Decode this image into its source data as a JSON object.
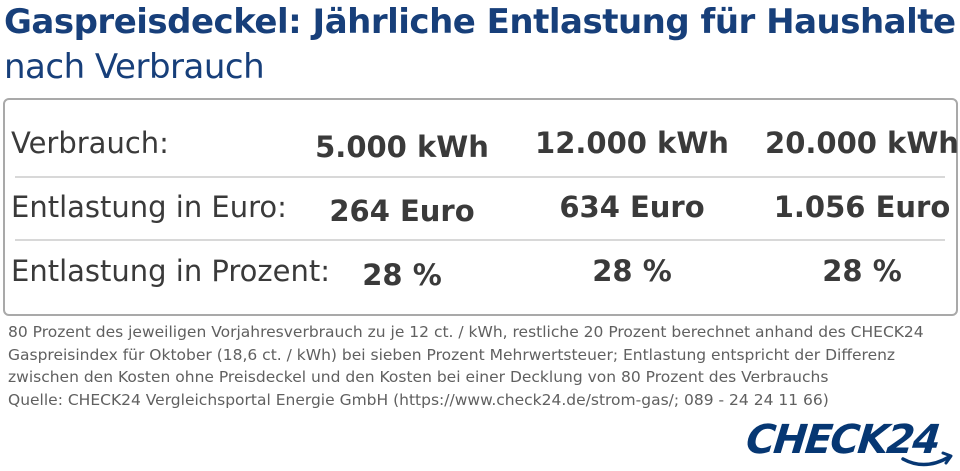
{
  "header": {
    "title": "Gaspreisdeckel: Jährliche Entlastung für Haushalte",
    "subtitle": "nach Verbrauch"
  },
  "table": {
    "rows": [
      {
        "label": "Verbrauch:",
        "values": [
          "5.000 kWh",
          "12.000 kWh",
          "20.000 kWh"
        ]
      },
      {
        "label": "Entlastung in Euro:",
        "values": [
          "264 Euro",
          "634 Euro",
          "1.056 Euro"
        ]
      },
      {
        "label": "Entlastung in Prozent:",
        "values": [
          "28 %",
          "28 %",
          "28 %"
        ]
      }
    ]
  },
  "footnote": {
    "lines": [
      "80 Prozent des jeweiligen Vorjahresverbrauch zu je 12 ct. / kWh, restliche 20 Prozent berechnet anhand des CHECK24",
      "Gaspreisindex für Oktober (18,6 ct. / kWh) bei sieben Prozent Mehrwertsteuer; Entlastung entspricht der Differenz",
      "zwischen den Kosten ohne Preisdeckel und den Kosten bei einer Decklung von 80 Prozent des Verbrauchs",
      "Quelle: CHECK24 Vergleichsportal Energie GmbH (https://www.check24.de/strom-gas/; 089 - 24 24 11 66)"
    ]
  },
  "logo": {
    "text": "CHECK24",
    "color": "#063773",
    "icon": "check24-logo-swoosh"
  },
  "colors": {
    "title": "#173f7a",
    "text": "#3a3a3a",
    "border": "#a9a9a9",
    "divider": "#d8d8d8"
  }
}
